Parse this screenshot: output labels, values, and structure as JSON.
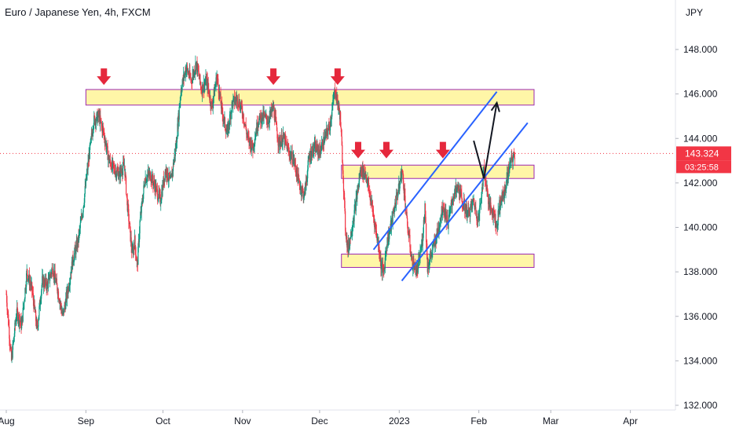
{
  "chart_data": {
    "type": "candlestick",
    "title": "Euro / Japanese Yen, 4h, FXCM",
    "y_unit": "JPY",
    "ylim": [
      132.0,
      149.5
    ],
    "y_ticks": [
      "148.000",
      "146.000",
      "144.000",
      "142.000",
      "140.000",
      "138.000",
      "136.000",
      "134.000",
      "132.000"
    ],
    "y_tick_values": [
      148,
      146,
      144,
      142,
      140,
      138,
      136,
      134,
      132
    ],
    "x_ticks": [
      "Aug",
      "Sep",
      "Oct",
      "Nov",
      "Dec",
      "2023",
      "Feb",
      "Mar",
      "Apr"
    ],
    "x_tick_days": [
      0,
      31,
      61,
      92,
      122,
      153,
      184,
      212,
      243
    ],
    "last_price": "143.324",
    "last_price_value": 143.324,
    "countdown": "03:25:58",
    "price_path": [
      [
        0,
        137.0
      ],
      [
        2,
        134.0
      ],
      [
        4,
        136.2
      ],
      [
        6,
        135.6
      ],
      [
        8,
        138.0
      ],
      [
        10,
        137.2
      ],
      [
        12,
        135.4
      ],
      [
        14,
        137.6
      ],
      [
        16,
        137.4
      ],
      [
        18,
        138.2
      ],
      [
        20,
        137.2
      ],
      [
        22,
        136.0
      ],
      [
        24,
        137.2
      ],
      [
        26,
        138.6
      ],
      [
        28,
        139.4
      ],
      [
        30,
        141.0
      ],
      [
        32,
        143.0
      ],
      [
        34,
        144.8
      ],
      [
        36,
        145.0
      ],
      [
        38,
        144.2
      ],
      [
        40,
        143.0
      ],
      [
        42,
        142.6
      ],
      [
        44,
        142.4
      ],
      [
        46,
        142.8
      ],
      [
        47,
        141.2
      ],
      [
        48,
        140.0
      ],
      [
        49,
        138.8
      ],
      [
        50,
        139.4
      ],
      [
        51,
        138.2
      ],
      [
        52,
        140.2
      ],
      [
        54,
        142.2
      ],
      [
        56,
        142.4
      ],
      [
        58,
        141.8
      ],
      [
        60,
        141.2
      ],
      [
        62,
        142.6
      ],
      [
        64,
        142.0
      ],
      [
        66,
        143.6
      ],
      [
        68,
        146.2
      ],
      [
        70,
        147.2
      ],
      [
        72,
        146.6
      ],
      [
        74,
        147.4
      ],
      [
        76,
        146.2
      ],
      [
        78,
        146.6
      ],
      [
        80,
        145.4
      ],
      [
        82,
        146.8
      ],
      [
        84,
        145.2
      ],
      [
        86,
        144.2
      ],
      [
        88,
        145.6
      ],
      [
        90,
        145.8
      ],
      [
        92,
        145.2
      ],
      [
        94,
        144.0
      ],
      [
        96,
        143.6
      ],
      [
        98,
        144.8
      ],
      [
        100,
        145.0
      ],
      [
        102,
        144.8
      ],
      [
        104,
        145.4
      ],
      [
        106,
        143.8
      ],
      [
        108,
        144.0
      ],
      [
        110,
        143.4
      ],
      [
        112,
        143.0
      ],
      [
        114,
        142.0
      ],
      [
        116,
        141.4
      ],
      [
        118,
        143.2
      ],
      [
        120,
        143.6
      ],
      [
        122,
        143.4
      ],
      [
        124,
        144.0
      ],
      [
        126,
        144.6
      ],
      [
        128,
        146.2
      ],
      [
        130,
        145.0
      ],
      [
        131,
        142.8
      ],
      [
        132,
        140.0
      ],
      [
        133,
        139.0
      ],
      [
        134,
        139.6
      ],
      [
        136,
        141.0
      ],
      [
        138,
        142.6
      ],
      [
        140,
        142.4
      ],
      [
        142,
        141.2
      ],
      [
        144,
        139.8
      ],
      [
        145,
        139.2
      ],
      [
        146,
        138.2
      ],
      [
        147,
        138.0
      ],
      [
        148,
        139.2
      ],
      [
        150,
        140.2
      ],
      [
        152,
        141.4
      ],
      [
        153,
        141.8
      ],
      [
        154,
        142.6
      ],
      [
        155,
        141.6
      ],
      [
        156,
        140.2
      ],
      [
        157,
        139.4
      ],
      [
        158,
        138.4
      ],
      [
        160,
        138.0
      ],
      [
        162,
        139.4
      ],
      [
        163,
        141.0
      ],
      [
        164,
        138.2
      ],
      [
        166,
        139.0
      ],
      [
        168,
        139.8
      ],
      [
        170,
        141.0
      ],
      [
        172,
        140.2
      ],
      [
        174,
        141.4
      ],
      [
        176,
        141.8
      ],
      [
        178,
        141.0
      ],
      [
        180,
        140.6
      ],
      [
        182,
        141.2
      ],
      [
        183,
        140.6
      ],
      [
        184,
        140.4
      ],
      [
        185,
        141.6
      ],
      [
        186,
        142.6
      ],
      [
        187,
        141.8
      ],
      [
        188,
        141.0
      ],
      [
        190,
        140.6
      ],
      [
        191,
        140.0
      ],
      [
        192,
        141.0
      ],
      [
        194,
        141.6
      ],
      [
        196,
        142.8
      ],
      [
        198,
        143.3
      ]
    ],
    "annotations": {
      "resistance_zones": [
        {
          "x0": 31,
          "x1": 205.5,
          "y0": 145.5,
          "y1": 146.2
        },
        {
          "x0": 130.5,
          "x1": 205.5,
          "y0": 142.2,
          "y1": 142.8
        },
        {
          "x0": 130.5,
          "x1": 205.5,
          "y0": 138.2,
          "y1": 138.8
        }
      ],
      "down_arrows": [
        {
          "x": 38,
          "y": 146.3
        },
        {
          "x": 104,
          "y": 146.3
        },
        {
          "x": 129,
          "y": 146.3
        },
        {
          "x": 137,
          "y": 143.0
        },
        {
          "x": 148,
          "y": 143.0
        },
        {
          "x": 170,
          "y": 143.0
        }
      ],
      "channel_lines": [
        {
          "x0": 143,
          "y0": 139.0,
          "x1": 191,
          "y1": 146.1
        },
        {
          "x0": 154,
          "y0": 137.6,
          "x1": 203,
          "y1": 144.7
        }
      ],
      "projection_path": [
        [
          182,
          143.9
        ],
        [
          186,
          142.2
        ],
        [
          191,
          145.6
        ]
      ]
    }
  }
}
